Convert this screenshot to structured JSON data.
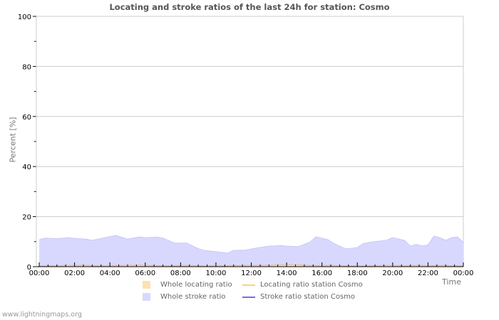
{
  "chart_data": {
    "type": "area",
    "title": "Locating and stroke ratios of the last 24h for station: Cosmo",
    "xlabel": "Time",
    "ylabel": "Percent   [%]",
    "ylim": [
      0,
      100
    ],
    "yticks": [
      0,
      20,
      40,
      60,
      80,
      100
    ],
    "xticks": [
      "00:00",
      "02:00",
      "04:00",
      "06:00",
      "08:00",
      "10:00",
      "12:00",
      "14:00",
      "16:00",
      "18:00",
      "20:00",
      "22:00",
      "00:00"
    ],
    "grid": true,
    "legend_position": "bottom",
    "x": [
      "00:00",
      "00:20",
      "01:00",
      "01:40",
      "02:00",
      "02:40",
      "03:00",
      "03:40",
      "04:20",
      "05:00",
      "05:40",
      "06:00",
      "06:40",
      "07:00",
      "07:40",
      "08:20",
      "09:00",
      "09:20",
      "10:00",
      "10:40",
      "11:00",
      "11:40",
      "12:20",
      "13:00",
      "13:40",
      "14:00",
      "14:40",
      "15:20",
      "15:40",
      "16:20",
      "16:40",
      "17:20",
      "18:00",
      "18:20",
      "18:40",
      "19:00",
      "19:40",
      "20:00",
      "20:40",
      "21:00",
      "21:20",
      "21:40",
      "22:00",
      "22:20",
      "22:40",
      "23:00",
      "23:20",
      "23:40",
      "00:00"
    ],
    "series": [
      {
        "name": "Whole locating ratio",
        "style": "area",
        "color": "#FFE0B0",
        "values": [
          0.3,
          0.3,
          0.4,
          0.5,
          0.5,
          0.6,
          0.4,
          0.4,
          0.5,
          0.6,
          0.6,
          0.5,
          0.4,
          0.4,
          0.4,
          0.5,
          0.4,
          0.3,
          0.4,
          0.4,
          0.5,
          0.5,
          0.5,
          0.6,
          0.7,
          0.8,
          0.7,
          0.5,
          0.5,
          0.5,
          0.5,
          0.4,
          0.3,
          0.3,
          0.4,
          0.4,
          0.5,
          0.5,
          0.4,
          0.5,
          0.5,
          0.5,
          0.4,
          0.4,
          0.5,
          0.5,
          0.4,
          0.4,
          0.4
        ]
      },
      {
        "name": "Whole stroke ratio",
        "style": "area",
        "color": "#D8D8FF",
        "values": [
          10.8,
          11.4,
          11.2,
          11.6,
          11.3,
          11.0,
          10.5,
          11.5,
          12.5,
          11.0,
          11.9,
          11.6,
          11.8,
          11.4,
          9.4,
          9.5,
          7.2,
          6.5,
          6.0,
          5.4,
          6.5,
          6.6,
          7.5,
          8.2,
          8.4,
          8.2,
          8.0,
          9.9,
          11.9,
          10.8,
          9.3,
          7.1,
          7.6,
          9.2,
          9.7,
          10.0,
          10.6,
          11.6,
          10.5,
          8.2,
          8.9,
          8.3,
          8.7,
          12.2,
          11.6,
          10.5,
          11.6,
          11.9,
          9.7
        ]
      },
      {
        "name": "Locating ratio station Cosmo",
        "style": "line",
        "color": "#FFD080",
        "values": []
      },
      {
        "name": "Stroke ratio station Cosmo",
        "style": "line",
        "color": "#7070E0",
        "values": []
      }
    ]
  },
  "header": {
    "title": "Locating and stroke ratios of the last 24h for station: Cosmo"
  },
  "axes": {
    "y_label": "Percent   [%]",
    "x_label": "Time",
    "y_ticks": [
      "100",
      "80",
      "60",
      "40",
      "20",
      "0"
    ],
    "x_ticks": [
      "00:00",
      "02:00",
      "04:00",
      "06:00",
      "08:00",
      "10:00",
      "12:00",
      "14:00",
      "16:00",
      "18:00",
      "20:00",
      "22:00",
      "00:00"
    ]
  },
  "legend": {
    "items": [
      {
        "label": "Whole locating ratio",
        "type": "area",
        "color": "#FFE0B0"
      },
      {
        "label": "Locating ratio station Cosmo",
        "type": "line",
        "color": "#FFD080"
      },
      {
        "label": "Whole stroke ratio",
        "type": "area",
        "color": "#D8D8FF"
      },
      {
        "label": "Stroke ratio station Cosmo",
        "type": "line",
        "color": "#7070E0"
      }
    ]
  },
  "footer": {
    "text": "www.lightningmaps.org"
  },
  "colors": {
    "grid": "#CCCCCC",
    "axis": "#CCCCCC",
    "tick_text": "#000000",
    "title_text": "#555555"
  }
}
